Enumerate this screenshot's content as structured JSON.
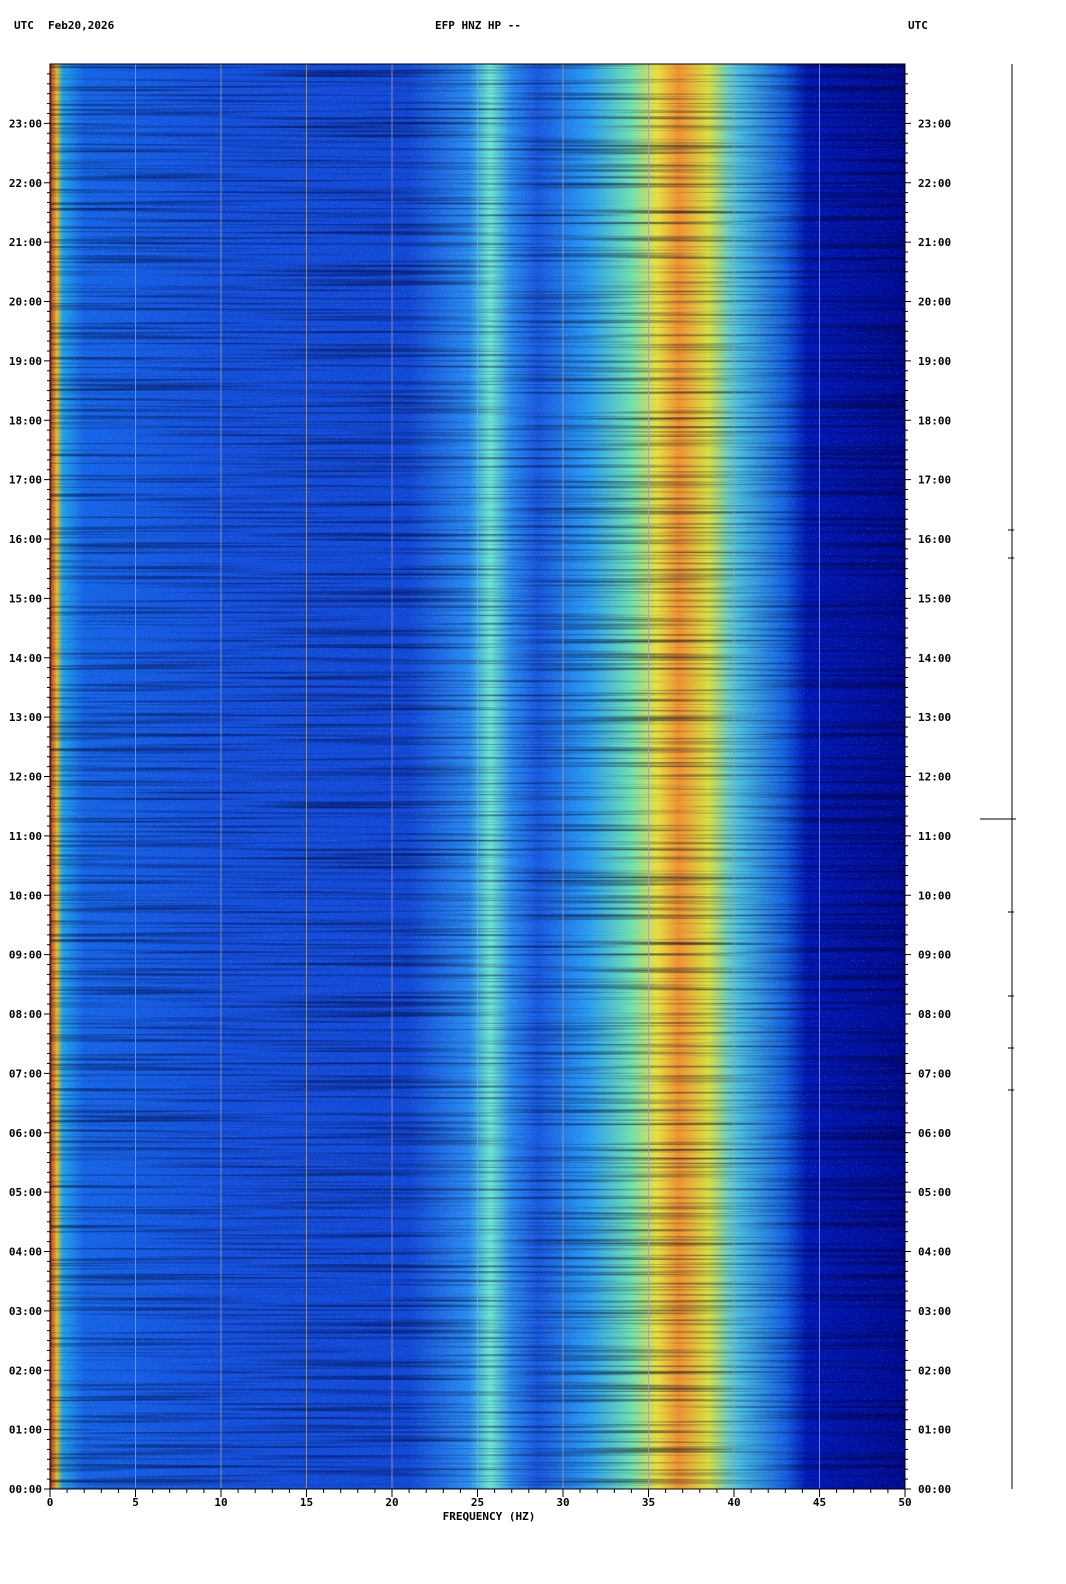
{
  "chart_data": {
    "type": "spectrogram",
    "title": "EFP HNZ HP --",
    "top_left_label": "UTC",
    "date": "Feb20,2026",
    "top_right_label": "UTC",
    "x_label": "FREQUENCY (HZ)",
    "xlim": [
      0,
      50
    ],
    "xticks": [
      0,
      5,
      10,
      15,
      20,
      25,
      30,
      35,
      40,
      45,
      50
    ],
    "grid": true,
    "ylim": [
      0,
      24
    ],
    "yticks": [
      {
        "value": 0,
        "label": "00:00"
      },
      {
        "value": 1,
        "label": "01:00"
      },
      {
        "value": 2,
        "label": "02:00"
      },
      {
        "value": 3,
        "label": "03:00"
      },
      {
        "value": 4,
        "label": "04:00"
      },
      {
        "value": 5,
        "label": "05:00"
      },
      {
        "value": 6,
        "label": "06:00"
      },
      {
        "value": 7,
        "label": "07:00"
      },
      {
        "value": 8,
        "label": "08:00"
      },
      {
        "value": 9,
        "label": "09:00"
      },
      {
        "value": 10,
        "label": "10:00"
      },
      {
        "value": 11,
        "label": "11:00"
      },
      {
        "value": 12,
        "label": "12:00"
      },
      {
        "value": 13,
        "label": "13:00"
      },
      {
        "value": 14,
        "label": "14:00"
      },
      {
        "value": 15,
        "label": "15:00"
      },
      {
        "value": 16,
        "label": "16:00"
      },
      {
        "value": 17,
        "label": "17:00"
      },
      {
        "value": 18,
        "label": "18:00"
      },
      {
        "value": 19,
        "label": "19:00"
      },
      {
        "value": 20,
        "label": "20:00"
      },
      {
        "value": 21,
        "label": "21:00"
      },
      {
        "value": 22,
        "label": "22:00"
      },
      {
        "value": 23,
        "label": "23:00"
      }
    ]
  }
}
